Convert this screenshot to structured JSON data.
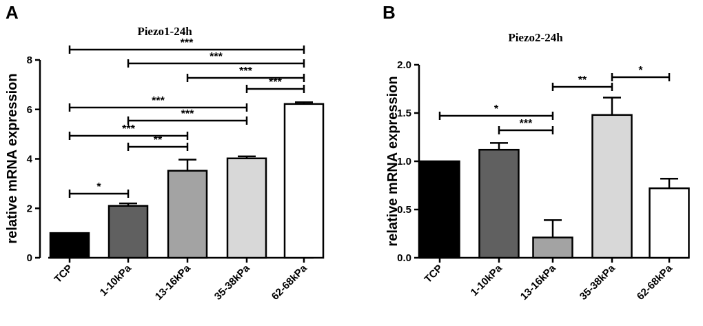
{
  "chart_data": [
    {
      "type": "bar",
      "panel": "A",
      "title": "Piezo1-24h",
      "xlabel": "",
      "ylabel": "relative mRNA expression",
      "categories": [
        "TCP",
        "1-10kPa",
        "13-16kPa",
        "35-38kPa",
        "62-68kPa"
      ],
      "values": [
        1.0,
        2.1,
        3.52,
        4.02,
        6.22
      ],
      "errors": [
        0,
        0.1,
        0.45,
        0.08,
        0.07
      ],
      "colors": [
        "#000000",
        "#606060",
        "#a3a3a3",
        "#d8d8d8",
        "#ffffff"
      ],
      "ylim": [
        0,
        8
      ],
      "yticks": [
        0,
        2,
        4,
        6,
        8
      ],
      "ytick_labels": [
        "0",
        "2",
        "4",
        "6",
        "8"
      ],
      "significance": [
        {
          "from": 0,
          "to": 1,
          "label": "*"
        },
        {
          "from": 1,
          "to": 2,
          "label": "**"
        },
        {
          "from": 0,
          "to": 2,
          "label": "***"
        },
        {
          "from": 1,
          "to": 3,
          "label": "***"
        },
        {
          "from": 0,
          "to": 3,
          "label": "***"
        },
        {
          "from": 3,
          "to": 4,
          "label": "***"
        },
        {
          "from": 2,
          "to": 4,
          "label": "***"
        },
        {
          "from": 1,
          "to": 4,
          "label": "***"
        },
        {
          "from": 0,
          "to": 4,
          "label": "***"
        }
      ]
    },
    {
      "type": "bar",
      "panel": "B",
      "title": "Piezo2-24h",
      "xlabel": "",
      "ylabel": "relative mRNA expression",
      "categories": [
        "TCP",
        "1-10kPa",
        "13-16kPa",
        "35-38kPa",
        "62-68kPa"
      ],
      "values": [
        1.0,
        1.12,
        0.21,
        1.48,
        0.72
      ],
      "errors": [
        0,
        0.07,
        0.18,
        0.18,
        0.1
      ],
      "colors": [
        "#000000",
        "#606060",
        "#a3a3a3",
        "#d8d8d8",
        "#ffffff"
      ],
      "ylim": [
        0,
        2
      ],
      "yticks": [
        0,
        0.5,
        1,
        1.5,
        2
      ],
      "ytick_labels": [
        "0.0",
        "0.5",
        "1.0",
        "1.5",
        "2.0"
      ],
      "significance": [
        {
          "from": 1,
          "to": 2,
          "label": "***"
        },
        {
          "from": 0,
          "to": 2,
          "label": "*"
        },
        {
          "from": 2,
          "to": 3,
          "label": "**"
        },
        {
          "from": 3,
          "to": 4,
          "label": "*"
        }
      ]
    }
  ]
}
